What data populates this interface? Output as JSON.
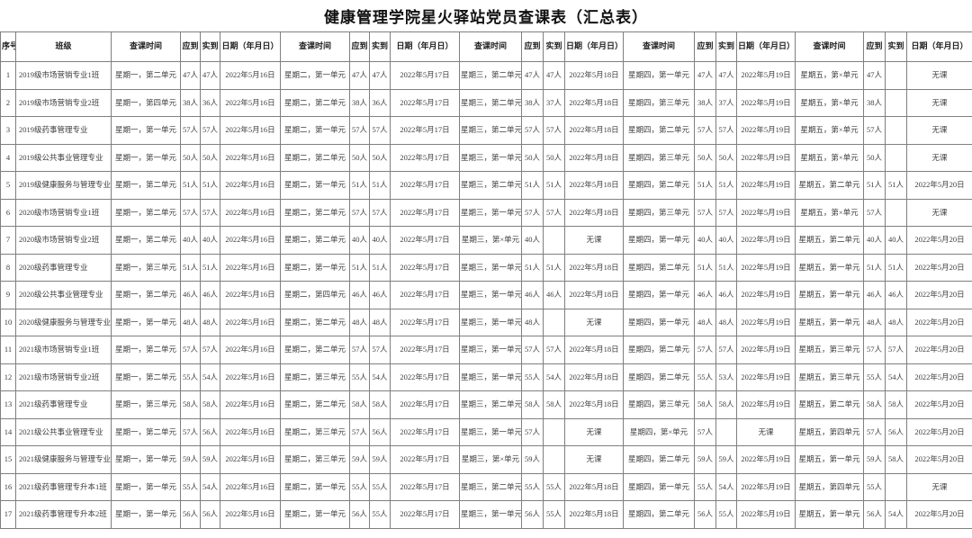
{
  "title": "健康管理学院星火驿站党员查课表（汇总表）",
  "table": {
    "headers": {
      "index": "序号",
      "class_name": "班级",
      "day_group": [
        "查课时间",
        "应到",
        "实到",
        "日期（年月日）"
      ],
      "day_group_count": 5
    },
    "no_class_label": "无课",
    "rows": [
      {
        "index": "1",
        "class_name": "2019级市场营销专业1班",
        "days": [
          [
            "星期一，第二单元",
            "47人",
            "47人",
            "2022年5月16日"
          ],
          [
            "星期二，第一单元",
            "47人",
            "47人",
            "2022年5月17日"
          ],
          [
            "星期三，第二单元",
            "47人",
            "47人",
            "2022年5月18日"
          ],
          [
            "星期四，第一单元",
            "47人",
            "47人",
            "2022年5月19日"
          ],
          [
            "星期五，第×单元",
            "47人",
            "",
            "无课"
          ]
        ]
      },
      {
        "index": "2",
        "class_name": "2019级市场营销专业2班",
        "days": [
          [
            "星期一，第四单元",
            "38人",
            "36人",
            "2022年5月16日"
          ],
          [
            "星期二，第二单元",
            "38人",
            "36人",
            "2022年5月17日"
          ],
          [
            "星期三，第二单元",
            "38人",
            "37人",
            "2022年5月18日"
          ],
          [
            "星期四，第三单元",
            "38人",
            "37人",
            "2022年5月19日"
          ],
          [
            "星期五，第×单元",
            "38人",
            "",
            "无课"
          ]
        ]
      },
      {
        "index": "3",
        "class_name": "2019级药事管理专业",
        "days": [
          [
            "星期一，第一单元",
            "57人",
            "57人",
            "2022年5月16日"
          ],
          [
            "星期二，第一单元",
            "57人",
            "57人",
            "2022年5月17日"
          ],
          [
            "星期三，第二单元",
            "57人",
            "57人",
            "2022年5月18日"
          ],
          [
            "星期四，第二单元",
            "57人",
            "57人",
            "2022年5月19日"
          ],
          [
            "星期五，第×单元",
            "57人",
            "",
            "无课"
          ]
        ]
      },
      {
        "index": "4",
        "class_name": "2019级公共事业管理专业",
        "days": [
          [
            "星期一，第一单元",
            "50人",
            "50人",
            "2022年5月16日"
          ],
          [
            "星期二，第二单元",
            "50人",
            "50人",
            "2022年5月17日"
          ],
          [
            "星期三，第一单元",
            "50人",
            "50人",
            "2022年5月18日"
          ],
          [
            "星期四，第三单元",
            "50人",
            "50人",
            "2022年5月19日"
          ],
          [
            "星期五，第×单元",
            "50人",
            "",
            "无课"
          ]
        ]
      },
      {
        "index": "5",
        "class_name": "2019级健康服务与管理专业",
        "days": [
          [
            "星期一，第二单元",
            "51人",
            "51人",
            "2022年5月16日"
          ],
          [
            "星期二，第一单元",
            "51人",
            "51人",
            "2022年5月17日"
          ],
          [
            "星期三，第二单元",
            "51人",
            "51人",
            "2022年5月18日"
          ],
          [
            "星期四，第二单元",
            "51人",
            "51人",
            "2022年5月19日"
          ],
          [
            "星期五，第二单元",
            "51人",
            "51人",
            "2022年5月20日"
          ]
        ]
      },
      {
        "index": "6",
        "class_name": "2020级市场营销专业1班",
        "days": [
          [
            "星期一，第二单元",
            "57人",
            "57人",
            "2022年5月16日"
          ],
          [
            "星期二，第二单元",
            "57人",
            "57人",
            "2022年5月17日"
          ],
          [
            "星期三，第一单元",
            "57人",
            "57人",
            "2022年5月18日"
          ],
          [
            "星期四，第三单元",
            "57人",
            "57人",
            "2022年5月19日"
          ],
          [
            "星期五，第×单元",
            "57人",
            "",
            "无课"
          ]
        ]
      },
      {
        "index": "7",
        "class_name": "2020级市场营销专业2班",
        "days": [
          [
            "星期一，第二单元",
            "40人",
            "40人",
            "2022年5月16日"
          ],
          [
            "星期二，第二单元",
            "40人",
            "40人",
            "2022年5月17日"
          ],
          [
            "星期三，第×单元",
            "40人",
            "",
            "无课"
          ],
          [
            "星期四，第一单元",
            "40人",
            "40人",
            "2022年5月19日"
          ],
          [
            "星期五，第二单元",
            "40人",
            "40人",
            "2022年5月20日"
          ]
        ]
      },
      {
        "index": "8",
        "class_name": "2020级药事管理专业",
        "days": [
          [
            "星期一，第三单元",
            "51人",
            "51人",
            "2022年5月16日"
          ],
          [
            "星期二，第一单元",
            "51人",
            "51人",
            "2022年5月17日"
          ],
          [
            "星期三，第一单元",
            "51人",
            "51人",
            "2022年5月18日"
          ],
          [
            "星期四，第二单元",
            "51人",
            "51人",
            "2022年5月19日"
          ],
          [
            "星期五，第一单元",
            "51人",
            "51人",
            "2022年5月20日"
          ]
        ]
      },
      {
        "index": "9",
        "class_name": "2020级公共事业管理专业",
        "days": [
          [
            "星期一，第二单元",
            "46人",
            "46人",
            "2022年5月16日"
          ],
          [
            "星期二，第四单元",
            "46人",
            "46人",
            "2022年5月17日"
          ],
          [
            "星期三，第一单元",
            "46人",
            "46人",
            "2022年5月18日"
          ],
          [
            "星期四，第一单元",
            "46人",
            "46人",
            "2022年5月19日"
          ],
          [
            "星期五，第一单元",
            "46人",
            "46人",
            "2022年5月20日"
          ]
        ]
      },
      {
        "index": "10",
        "class_name": "2020级健康服务与管理专业",
        "days": [
          [
            "星期一，第一单元",
            "48人",
            "48人",
            "2022年5月16日"
          ],
          [
            "星期二，第二单元",
            "48人",
            "48人",
            "2022年5月17日"
          ],
          [
            "星期三，第一单元",
            "48人",
            "",
            "无课"
          ],
          [
            "星期四，第一单元",
            "48人",
            "48人",
            "2022年5月19日"
          ],
          [
            "星期五，第一单元",
            "48人",
            "48人",
            "2022年5月20日"
          ]
        ]
      },
      {
        "index": "11",
        "class_name": "2021级市场营销专业1班",
        "days": [
          [
            "星期一，第二单元",
            "57人",
            "57人",
            "2022年5月16日"
          ],
          [
            "星期二，第二单元",
            "57人",
            "57人",
            "2022年5月17日"
          ],
          [
            "星期三，第一单元",
            "57人",
            "57人",
            "2022年5月18日"
          ],
          [
            "星期四，第二单元",
            "57人",
            "57人",
            "2022年5月19日"
          ],
          [
            "星期五，第三单元",
            "57人",
            "57人",
            "2022年5月20日"
          ]
        ]
      },
      {
        "index": "12",
        "class_name": "2021级市场营销专业2班",
        "days": [
          [
            "星期一，第二单元",
            "55人",
            "54人",
            "2022年5月16日"
          ],
          [
            "星期二，第三单元",
            "55人",
            "54人",
            "2022年5月17日"
          ],
          [
            "星期三，第一单元",
            "55人",
            "54人",
            "2022年5月18日"
          ],
          [
            "星期四，第二单元",
            "55人",
            "53人",
            "2022年5月19日"
          ],
          [
            "星期五，第三单元",
            "55人",
            "54人",
            "2022年5月20日"
          ]
        ]
      },
      {
        "index": "13",
        "class_name": "2021级药事管理专业",
        "days": [
          [
            "星期一，第三单元",
            "58人",
            "58人",
            "2022年5月16日"
          ],
          [
            "星期二，第二单元",
            "58人",
            "58人",
            "2022年5月17日"
          ],
          [
            "星期三，第二单元",
            "58人",
            "58人",
            "2022年5月18日"
          ],
          [
            "星期四，第三单元",
            "58人",
            "58人",
            "2022年5月19日"
          ],
          [
            "星期五，第二单元",
            "58人",
            "58人",
            "2022年5月20日"
          ]
        ]
      },
      {
        "index": "14",
        "class_name": "2021级公共事业管理专业",
        "days": [
          [
            "星期一，第二单元",
            "57人",
            "56人",
            "2022年5月16日"
          ],
          [
            "星期二，第三单元",
            "57人",
            "56人",
            "2022年5月17日"
          ],
          [
            "星期三，第一单元",
            "57人",
            "",
            "无课"
          ],
          [
            "星期四，第×单元",
            "57人",
            "",
            "无课"
          ],
          [
            "星期五，第四单元",
            "57人",
            "56人",
            "2022年5月20日"
          ]
        ]
      },
      {
        "index": "15",
        "class_name": "2021级健康服务与管理专业",
        "days": [
          [
            "星期一，第一单元",
            "59人",
            "59人",
            "2022年5月16日"
          ],
          [
            "星期二，第三单元",
            "59人",
            "59人",
            "2022年5月17日"
          ],
          [
            "星期三，第×单元",
            "59人",
            "",
            "无课"
          ],
          [
            "星期四，第二单元",
            "59人",
            "59人",
            "2022年5月19日"
          ],
          [
            "星期五，第一单元",
            "59人",
            "58人",
            "2022年5月20日"
          ]
        ]
      },
      {
        "index": "16",
        "class_name": "2021级药事管理专升本1班",
        "days": [
          [
            "星期一，第一单元",
            "55人",
            "54人",
            "2022年5月16日"
          ],
          [
            "星期二，第一单元",
            "55人",
            "55人",
            "2022年5月17日"
          ],
          [
            "星期三，第二单元",
            "55人",
            "55人",
            "2022年5月18日"
          ],
          [
            "星期四，第一单元",
            "55人",
            "54人",
            "2022年5月19日"
          ],
          [
            "星期五，第四单元",
            "55人",
            "",
            "无课"
          ]
        ]
      },
      {
        "index": "17",
        "class_name": "2021级药事管理专升本2班",
        "days": [
          [
            "星期一，第一单元",
            "56人",
            "56人",
            "2022年5月16日"
          ],
          [
            "星期二，第一单元",
            "56人",
            "55人",
            "2022年5月17日"
          ],
          [
            "星期三，第一单元",
            "56人",
            "55人",
            "2022年5月18日"
          ],
          [
            "星期四，第二单元",
            "56人",
            "55人",
            "2022年5月19日"
          ],
          [
            "星期五，第一单元",
            "56人",
            "54人",
            "2022年5月20日"
          ]
        ]
      }
    ]
  }
}
